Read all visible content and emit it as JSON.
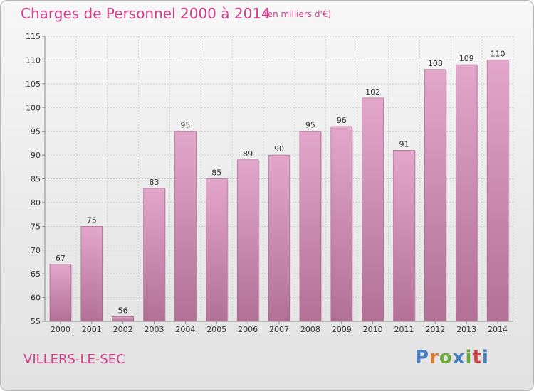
{
  "header": {
    "title": "Charges de Personnel 2000 à 2014",
    "subtitle": "(en milliers d'€)"
  },
  "footer": {
    "commune": "VILLERS-LE-SEC",
    "logo_text": "Proxiti"
  },
  "colors": {
    "title": "#d0408a",
    "bar_top": "#e3a6cb",
    "bar_bottom": "#b27095",
    "logo_letters": [
      "#4a7fc1",
      "#e07a2e",
      "#6aaa3a",
      "#4a7fc1",
      "#6aaa3a",
      "#d04040",
      "#4a7fc1"
    ]
  },
  "chart_data": {
    "type": "bar",
    "title": "Charges de Personnel 2000 à 2014",
    "categories": [
      "2000",
      "2001",
      "2002",
      "2003",
      "2004",
      "2005",
      "2006",
      "2007",
      "2008",
      "2009",
      "2010",
      "2011",
      "2012",
      "2013",
      "2014"
    ],
    "values": [
      67,
      75,
      56,
      83,
      95,
      85,
      89,
      90,
      95,
      96,
      102,
      91,
      108,
      109,
      110
    ],
    "ylim": [
      55,
      115
    ],
    "yticks": [
      55,
      60,
      65,
      70,
      75,
      80,
      85,
      90,
      95,
      100,
      105,
      110,
      115
    ],
    "grid": true,
    "data_labels": true
  }
}
